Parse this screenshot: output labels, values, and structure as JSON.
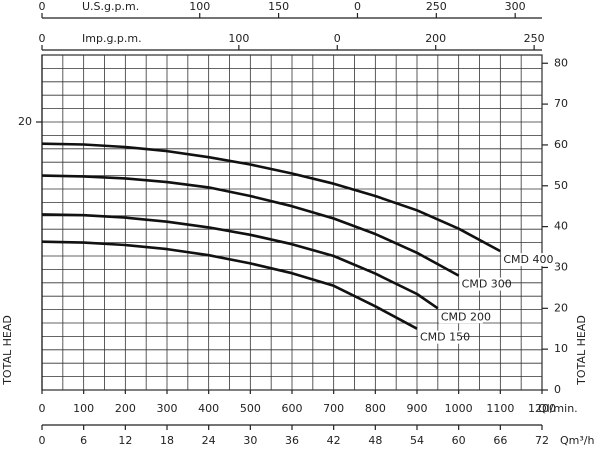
{
  "chart_data": {
    "type": "line",
    "xlim": [
      0,
      1200
    ],
    "xticks": [
      0,
      100,
      200,
      300,
      400,
      500,
      600,
      700,
      800,
      900,
      1000,
      1100,
      1200
    ],
    "xlabel": "Ql/min.",
    "ylim": [
      0,
      25
    ],
    "yticks": [
      20
    ],
    "ylabel": "TOTAL HEAD",
    "y2lim": [
      0,
      82.02
    ],
    "y2ticks": [
      0,
      10,
      20,
      30,
      40,
      50,
      60,
      70,
      80
    ],
    "y2label": "TOTAL HEAD",
    "grid": true,
    "extra_x_axes": [
      {
        "label": "Qm³/h",
        "position": "bottom",
        "lim": [
          0,
          72
        ],
        "ticks": [
          0,
          6,
          12,
          18,
          24,
          30,
          36,
          42,
          48,
          54,
          60,
          66,
          72
        ]
      },
      {
        "label": "Imp.g.p.m.",
        "position": "top",
        "lim": [
          0,
          254
        ],
        "ticks": [
          0,
          100,
          {
            "value": 150,
            "label": "0"
          },
          200,
          250
        ]
      },
      {
        "label": "U.S.g.p.m.",
        "position": "top",
        "lim": [
          0,
          317
        ],
        "ticks": [
          0,
          100,
          150,
          {
            "value": 200,
            "label": "0"
          },
          250,
          300
        ]
      }
    ],
    "series": [
      {
        "name": "CMD 400",
        "color": "#111111",
        "axis": "y2",
        "x": [
          0,
          100,
          200,
          300,
          400,
          500,
          600,
          700,
          800,
          900,
          1000,
          1100
        ],
        "values": [
          60.3,
          60.1,
          59.5,
          58.5,
          57,
          55.2,
          53,
          50.5,
          47.5,
          44,
          39.5,
          34
        ]
      },
      {
        "name": "CMD 300",
        "color": "#111111",
        "axis": "y2",
        "x": [
          0,
          100,
          200,
          300,
          400,
          500,
          600,
          700,
          800,
          900,
          1000
        ],
        "values": [
          52.5,
          52.3,
          51.8,
          50.9,
          49.6,
          47.5,
          45,
          42,
          38.2,
          33.6,
          28
        ]
      },
      {
        "name": "CMD 200",
        "color": "#111111",
        "axis": "y2",
        "x": [
          0,
          100,
          200,
          300,
          400,
          500,
          600,
          700,
          800,
          900,
          950
        ],
        "values": [
          43,
          42.8,
          42.2,
          41.2,
          39.8,
          38,
          35.7,
          32.8,
          28.5,
          23.5,
          20
        ]
      },
      {
        "name": "CMD 150",
        "color": "#111111",
        "axis": "y2",
        "x": [
          0,
          100,
          200,
          300,
          400,
          500,
          600,
          700,
          800,
          900
        ],
        "values": [
          36.3,
          36.1,
          35.5,
          34.5,
          33,
          31,
          28.6,
          25.5,
          20.5,
          15
        ]
      }
    ]
  }
}
